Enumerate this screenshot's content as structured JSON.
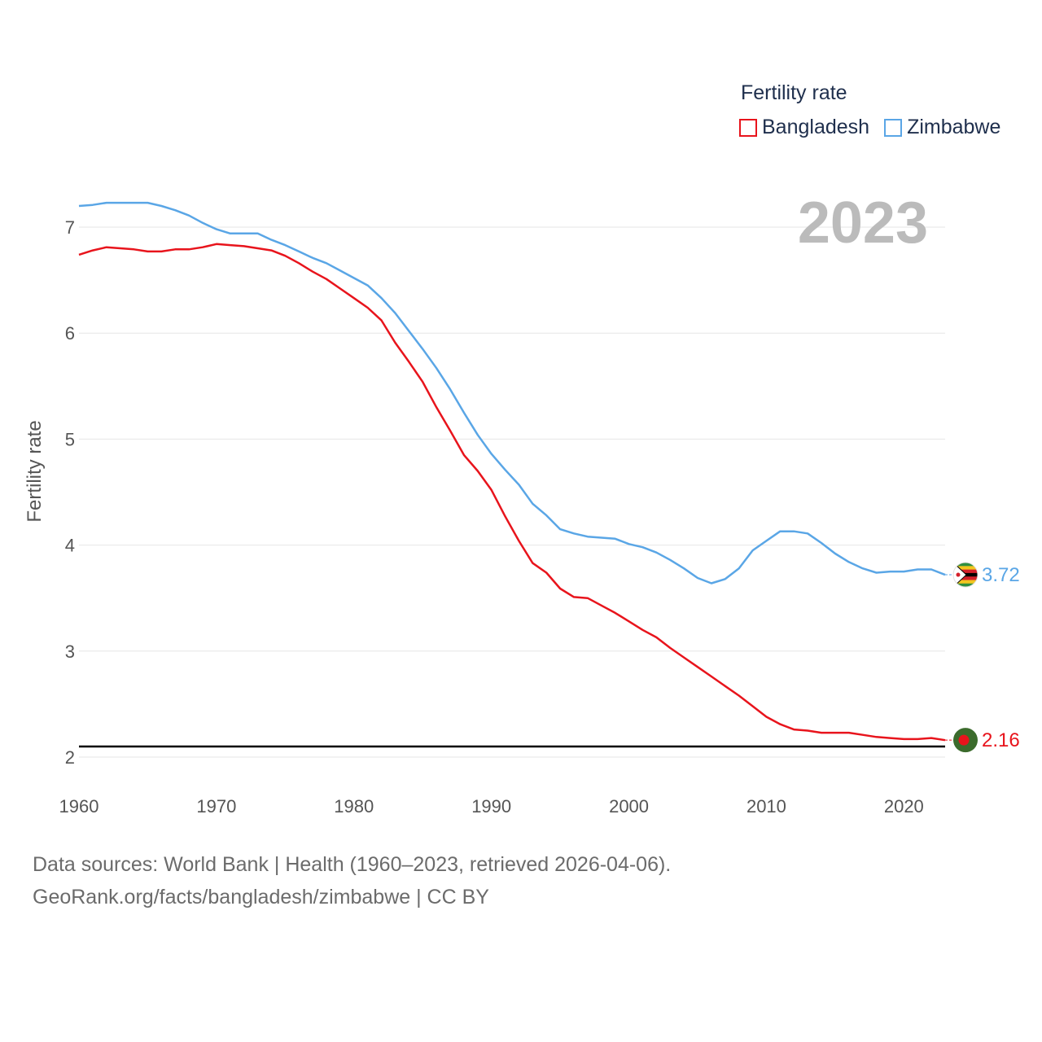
{
  "chart_data": {
    "type": "line",
    "title": "Fertility rate",
    "ylabel": "Fertility rate",
    "xlabel": "",
    "current_year_label": "2023",
    "x_range": [
      1960,
      2023
    ],
    "ylim": [
      2,
      7.4
    ],
    "x_ticks": [
      1960,
      1970,
      1980,
      1990,
      2000,
      2010,
      2020
    ],
    "y_ticks": [
      2,
      3,
      4,
      5,
      6,
      7
    ],
    "reference_line": {
      "value": 2.1
    },
    "legend": {
      "title": "Fertility rate",
      "placement": "top-right"
    },
    "x": [
      1960,
      1961,
      1962,
      1963,
      1964,
      1965,
      1966,
      1967,
      1968,
      1969,
      1970,
      1971,
      1972,
      1973,
      1974,
      1975,
      1976,
      1977,
      1978,
      1979,
      1980,
      1981,
      1982,
      1983,
      1984,
      1985,
      1986,
      1987,
      1988,
      1989,
      1990,
      1991,
      1992,
      1993,
      1994,
      1995,
      1996,
      1997,
      1998,
      1999,
      2000,
      2001,
      2002,
      2003,
      2004,
      2005,
      2006,
      2007,
      2008,
      2009,
      2010,
      2011,
      2012,
      2013,
      2014,
      2015,
      2016,
      2017,
      2018,
      2019,
      2020,
      2021,
      2022,
      2023
    ],
    "series": [
      {
        "name": "Bangladesh",
        "color": "#e8141c",
        "end_label": "2.16",
        "flag_icon": "bangladesh-flag-icon",
        "values": [
          6.74,
          6.78,
          6.81,
          6.8,
          6.79,
          6.77,
          6.77,
          6.79,
          6.79,
          6.81,
          6.84,
          6.83,
          6.82,
          6.8,
          6.78,
          6.73,
          6.66,
          6.58,
          6.51,
          6.42,
          6.33,
          6.24,
          6.12,
          5.91,
          5.73,
          5.54,
          5.3,
          5.08,
          4.85,
          4.7,
          4.52,
          4.27,
          4.04,
          3.83,
          3.74,
          3.59,
          3.51,
          3.5,
          3.43,
          3.36,
          3.28,
          3.2,
          3.13,
          3.03,
          2.94,
          2.85,
          2.76,
          2.67,
          2.58,
          2.48,
          2.38,
          2.31,
          2.26,
          2.25,
          2.23,
          2.23,
          2.23,
          2.21,
          2.19,
          2.18,
          2.17,
          2.17,
          2.18,
          2.16
        ]
      },
      {
        "name": "Zimbabwe",
        "color": "#5aa6e6",
        "end_label": "3.72",
        "flag_icon": "zimbabwe-flag-icon",
        "values": [
          7.2,
          7.21,
          7.23,
          7.23,
          7.23,
          7.23,
          7.2,
          7.16,
          7.11,
          7.04,
          6.98,
          6.94,
          6.94,
          6.94,
          6.88,
          6.83,
          6.77,
          6.71,
          6.66,
          6.59,
          6.52,
          6.45,
          6.33,
          6.19,
          6.02,
          5.85,
          5.67,
          5.47,
          5.25,
          5.04,
          4.86,
          4.71,
          4.57,
          4.39,
          4.28,
          4.15,
          4.11,
          4.08,
          4.07,
          4.06,
          4.01,
          3.98,
          3.93,
          3.86,
          3.78,
          3.69,
          3.64,
          3.68,
          3.78,
          3.95,
          4.04,
          4.13,
          4.13,
          4.11,
          4.02,
          3.92,
          3.84,
          3.78,
          3.74,
          3.75,
          3.75,
          3.77,
          3.77,
          3.72
        ]
      }
    ]
  },
  "footer": {
    "sources": "Data sources: World Bank | Health (1960–2023, retrieved 2026-04-06).",
    "attribution": "GeoRank.org/facts/bangladesh/zimbabwe | CC BY"
  }
}
